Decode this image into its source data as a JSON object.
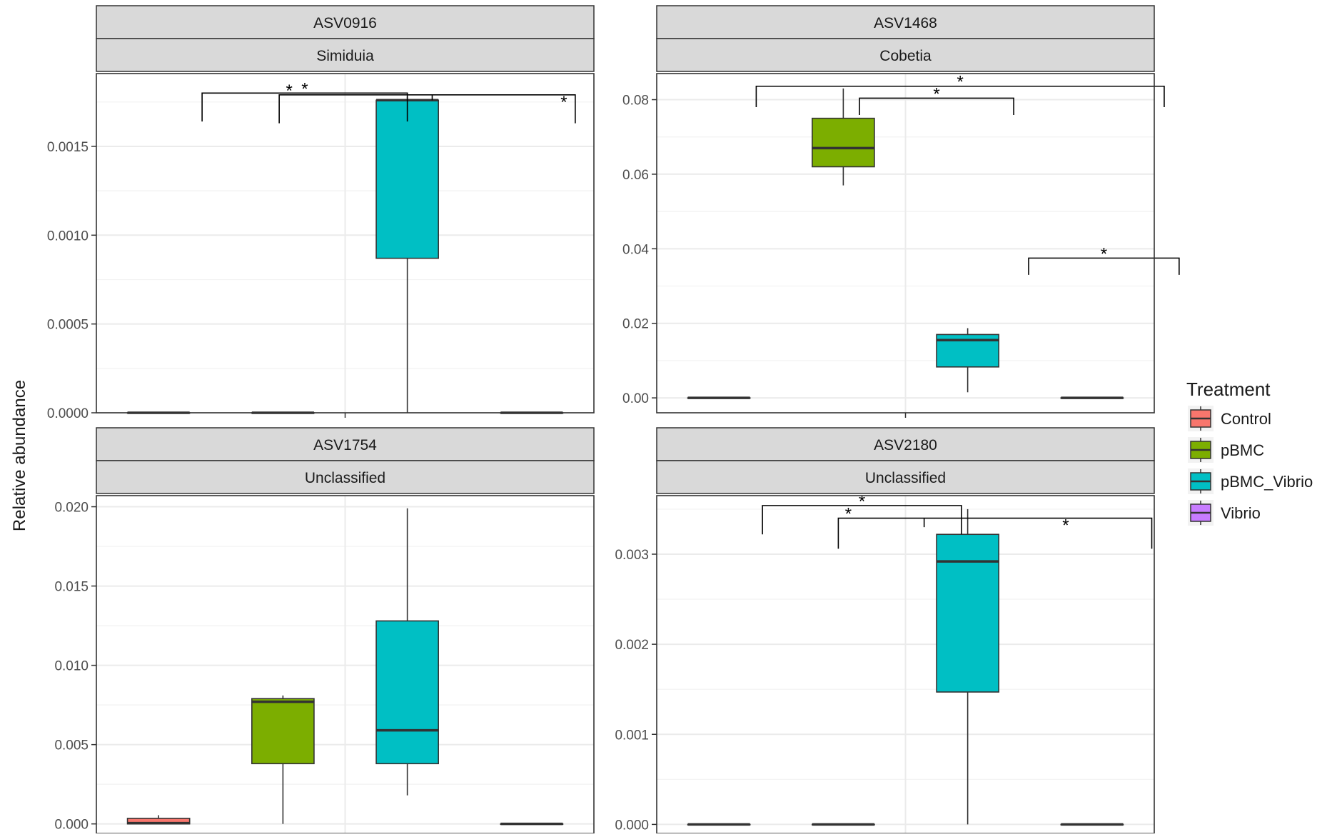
{
  "chart_data": {
    "type": "boxplot",
    "figure": {
      "ylabel": "Relative abundance",
      "legend": {
        "title": "Treatment",
        "placement": "right",
        "items": [
          {
            "label": "Control",
            "color": "#F8766D"
          },
          {
            "label": "pBMC",
            "color": "#7CAE00"
          },
          {
            "label": "pBMC_Vibrio",
            "color": "#00BFC4"
          },
          {
            "label": "Vibrio",
            "color": "#C77CFF"
          }
        ]
      },
      "grid": true,
      "facets": "2 x 2 grid, two strip labels per panel"
    },
    "panels": [
      {
        "strip_top": "ASV0916",
        "strip_bottom": "Simiduia",
        "ylim": [
          -0.0,
          0.00191
        ],
        "y_ticks": [
          {
            "value": 0,
            "label": "0.0000"
          },
          {
            "value": 0.0005,
            "label": "0.0005"
          },
          {
            "value": 0.001,
            "label": "0.0010"
          },
          {
            "value": 0.0015,
            "label": "0.0015"
          }
        ],
        "boxes": [
          {
            "group": "Control",
            "pos": 1,
            "min": 0,
            "q1": 0,
            "median": 0,
            "q3": 0,
            "max": 0
          },
          {
            "group": "pBMC",
            "pos": 2,
            "min": 0,
            "q1": 0,
            "median": 0,
            "q3": 0,
            "max": 0
          },
          {
            "group": "pBMC_Vibrio",
            "pos": 3,
            "min": 0,
            "q1": 0.00087,
            "median": 0.00176,
            "q3": 0.00176,
            "max": 0.00178
          },
          {
            "group": "Vibrio",
            "pos": 4,
            "min": 0,
            "q1": 0,
            "median": 0,
            "q3": 0,
            "max": 0
          }
        ],
        "significance": [
          {
            "label": "*",
            "x1": 1.35,
            "x2": 3.0,
            "y": 0.0018,
            "tip": 0.00016
          },
          {
            "label": "*",
            "x1": 1.97,
            "x2": 4.35,
            "y": 0.00179,
            "tip": 0.00016
          },
          {
            "label": "*",
            "x1": 3.2,
            "x2": 3.2,
            "y": 0.00179,
            "tip": 3e-05
          }
        ]
      },
      {
        "strip_top": "ASV1468",
        "strip_bottom": "Cobetia",
        "ylim": [
          -0.004,
          0.087
        ],
        "y_ticks": [
          {
            "value": 0,
            "label": "0.00"
          },
          {
            "value": 0.02,
            "label": "0.02"
          },
          {
            "value": 0.04,
            "label": "0.04"
          },
          {
            "value": 0.06,
            "label": "0.06"
          },
          {
            "value": 0.08,
            "label": "0.08"
          }
        ],
        "boxes": [
          {
            "group": "Control",
            "pos": 1,
            "min": 0,
            "q1": 0,
            "median": 0,
            "q3": 0,
            "max": 0
          },
          {
            "group": "pBMC",
            "pos": 2,
            "min": 0.057,
            "q1": 0.062,
            "median": 0.067,
            "q3": 0.075,
            "max": 0.083
          },
          {
            "group": "pBMC_Vibrio",
            "pos": 3,
            "min": 0.0015,
            "q1": 0.0083,
            "median": 0.0155,
            "q3": 0.017,
            "max": 0.0187
          },
          {
            "group": "Vibrio",
            "pos": 4,
            "min": 0,
            "q1": 0,
            "median": 0,
            "q3": 0,
            "max": 0
          }
        ],
        "significance": [
          {
            "label": "*",
            "x1": 1.3,
            "x2": 4.58,
            "y": 0.0836,
            "tip": 0.0056
          },
          {
            "label": "*",
            "x1": 2.13,
            "x2": 3.37,
            "y": 0.0804,
            "tip": 0.0045
          },
          {
            "label": "*",
            "x1": 3.49,
            "x2": 4.7,
            "y": 0.0375,
            "tip": 0.0045
          }
        ]
      },
      {
        "strip_top": "ASV1754",
        "strip_bottom": "Unclassified",
        "ylim": [
          -0.0006,
          0.0207
        ],
        "y_ticks": [
          {
            "value": 0,
            "label": "0.000"
          },
          {
            "value": 0.005,
            "label": "0.005"
          },
          {
            "value": 0.01,
            "label": "0.010"
          },
          {
            "value": 0.015,
            "label": "0.015"
          },
          {
            "value": 0.02,
            "label": "0.020"
          }
        ],
        "boxes": [
          {
            "group": "Control",
            "pos": 1,
            "min": 0,
            "q1": 0.0,
            "median": 5e-05,
            "q3": 0.00035,
            "max": 0.00055
          },
          {
            "group": "pBMC",
            "pos": 2,
            "min": 0,
            "q1": 0.0038,
            "median": 0.0077,
            "q3": 0.0079,
            "max": 0.0081
          },
          {
            "group": "pBMC_Vibrio",
            "pos": 3,
            "min": 0.0018,
            "q1": 0.0038,
            "median": 0.0059,
            "q3": 0.0128,
            "max": 0.0199
          },
          {
            "group": "Vibrio",
            "pos": 4,
            "min": 0,
            "q1": 0,
            "median": 0,
            "q3": 0,
            "max": 0
          }
        ],
        "significance": []
      },
      {
        "strip_top": "ASV2180",
        "strip_bottom": "Unclassified",
        "ylim": [
          -0.0001,
          0.00365
        ],
        "y_ticks": [
          {
            "value": 0,
            "label": "0.000"
          },
          {
            "value": 0.001,
            "label": "0.001"
          },
          {
            "value": 0.002,
            "label": "0.002"
          },
          {
            "value": 0.003,
            "label": "0.003"
          }
        ],
        "boxes": [
          {
            "group": "Control",
            "pos": 1,
            "min": 0,
            "q1": 0,
            "median": 0,
            "q3": 0,
            "max": 0
          },
          {
            "group": "pBMC",
            "pos": 2,
            "min": 0,
            "q1": 0,
            "median": 0,
            "q3": 0,
            "max": 0
          },
          {
            "group": "pBMC_Vibrio",
            "pos": 3,
            "min": 0,
            "q1": 0.00147,
            "median": 0.00292,
            "q3": 0.00322,
            "max": 0.0035
          },
          {
            "group": "Vibrio",
            "pos": 4,
            "min": 0,
            "q1": 0,
            "median": 0,
            "q3": 0,
            "max": 0
          }
        ],
        "significance": [
          {
            "label": "*",
            "x1": 1.35,
            "x2": 2.95,
            "y": 0.00354,
            "tip": 0.00032
          },
          {
            "label": "*",
            "x1": 1.96,
            "x2": 4.48,
            "y": 0.0034,
            "tip": 0.00034
          },
          {
            "label": "*",
            "x1": 2.65,
            "x2": 2.65,
            "y": 0.0034,
            "tip": 0.0001
          }
        ]
      }
    ]
  }
}
